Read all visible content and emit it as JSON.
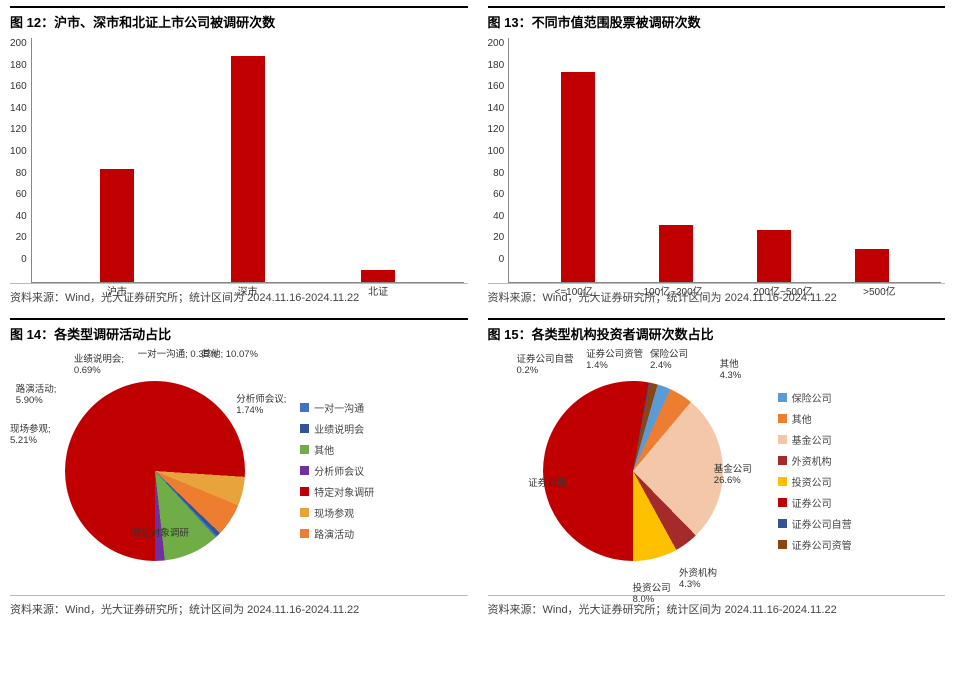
{
  "source_text": "资料来源：Wind，光大证券研究所；统计区间为 2024.11.16-2024.11.22",
  "colors": {
    "bar": "#c00000",
    "axis": "#888888",
    "title": "#000000",
    "source": "#444444"
  },
  "fig12": {
    "title": "图 12：沪市、深市和北证上市公司被调研次数",
    "type": "bar",
    "categories": [
      "沪市",
      "深市",
      "北证"
    ],
    "values": [
      93,
      185,
      10
    ],
    "ylim": [
      0,
      200
    ],
    "ytick_step": 20,
    "bar_color": "#c00000",
    "background": "#ffffff"
  },
  "fig13": {
    "title": "图 13：不同市值范围股票被调研次数",
    "type": "bar",
    "categories": [
      "<=100亿",
      "100亿~200亿",
      "200亿~500亿",
      ">500亿"
    ],
    "values": [
      172,
      47,
      43,
      27
    ],
    "ylim": [
      0,
      200
    ],
    "ytick_step": 20,
    "bar_color": "#c00000",
    "background": "#ffffff"
  },
  "fig14": {
    "title": "图 14：各类型调研活动占比",
    "type": "pie",
    "slices": [
      {
        "label": "特定对象调研",
        "value": 76.04,
        "color": "#c00000",
        "lab_x": 42,
        "lab_y": 72,
        "show_pct": false
      },
      {
        "label": "现场参观",
        "value": 5.21,
        "color": "#e8a33d",
        "lab_x": 0,
        "lab_y": 30,
        "show_pct": true,
        "suffix": ";"
      },
      {
        "label": "路演活动",
        "value": 5.9,
        "color": "#ed7d31",
        "lab_x": 2,
        "lab_y": 14,
        "show_pct": true,
        "suffix": ";"
      },
      {
        "label": "业绩说明会",
        "value": 0.69,
        "color": "#305496",
        "lab_x": 22,
        "lab_y": 2,
        "show_pct": true,
        "suffix": ";"
      },
      {
        "label": "一对一沟通",
        "value": 0.35,
        "color": "#4472c4",
        "lab_x": 44,
        "lab_y": 0,
        "show_pct": true,
        "suffix": "; ",
        "inline": true
      },
      {
        "label": "其他",
        "value": 10.07,
        "color": "#70ad47",
        "lab_x": 66,
        "lab_y": 0,
        "show_pct": true,
        "suffix": "; ",
        "inline": true
      },
      {
        "label": "分析师会议",
        "value": 1.74,
        "color": "#7030a0",
        "lab_x": 78,
        "lab_y": 18,
        "show_pct": true,
        "suffix": ";"
      }
    ],
    "legend_order": [
      "一对一沟通",
      "业绩说明会",
      "其他",
      "分析师会议",
      "特定对象调研",
      "现场参观",
      "路演活动"
    ]
  },
  "fig15": {
    "title": "图 15：各类型机构投资者调研次数占比",
    "type": "pie",
    "slices": [
      {
        "label": "证券公司",
        "value": 52.8,
        "color": "#c00000",
        "lab_x": 14,
        "lab_y": 52,
        "show_pct": false
      },
      {
        "label": "证券公司自营",
        "value": 0.2,
        "color": "#305496",
        "lab_x": 10,
        "lab_y": 2,
        "show_pct": true
      },
      {
        "label": "证券公司资管",
        "value": 1.4,
        "color": "#8b4513",
        "lab_x": 34,
        "lab_y": 0,
        "show_pct": true
      },
      {
        "label": "保险公司",
        "value": 2.4,
        "color": "#5b9bd5",
        "lab_x": 56,
        "lab_y": 0,
        "show_pct": true
      },
      {
        "label": "其他",
        "value": 4.3,
        "color": "#ed7d31",
        "lab_x": 80,
        "lab_y": 4,
        "show_pct": true
      },
      {
        "label": "基金公司",
        "value": 26.6,
        "color": "#f4c7a8",
        "lab_x": 78,
        "lab_y": 46,
        "show_pct": true
      },
      {
        "label": "外资机构",
        "value": 4.3,
        "color": "#a52a2a",
        "lab_x": 66,
        "lab_y": 88,
        "show_pct": true
      },
      {
        "label": "投资公司",
        "value": 8.0,
        "color": "#ffc000",
        "lab_x": 50,
        "lab_y": 94,
        "show_pct": true
      }
    ],
    "legend_order": [
      "保险公司",
      "其他",
      "基金公司",
      "外资机构",
      "投资公司",
      "证券公司",
      "证券公司自营",
      "证券公司资管"
    ]
  }
}
